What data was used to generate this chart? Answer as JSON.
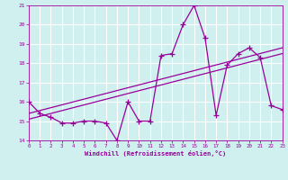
{
  "xlabel": "Windchill (Refroidissement éolien,°C)",
  "bg_color": "#cff0ef",
  "line_color": "#990099",
  "grid_color": "#ffffff",
  "xlim": [
    0,
    23
  ],
  "ylim": [
    14,
    21
  ],
  "yticks": [
    14,
    15,
    16,
    17,
    18,
    19,
    20,
    21
  ],
  "xticks": [
    0,
    1,
    2,
    3,
    4,
    5,
    6,
    7,
    8,
    9,
    10,
    11,
    12,
    13,
    14,
    15,
    16,
    17,
    18,
    19,
    20,
    21,
    22,
    23
  ],
  "series1_x": [
    0,
    1,
    2,
    3,
    4,
    5,
    6,
    7,
    8,
    9,
    10,
    11,
    12,
    13,
    14,
    15,
    16,
    17,
    18,
    19,
    20,
    21,
    22,
    23
  ],
  "series1_y": [
    16.0,
    15.4,
    15.2,
    14.9,
    14.9,
    15.0,
    15.0,
    14.9,
    14.0,
    16.0,
    15.0,
    15.0,
    18.4,
    18.5,
    20.0,
    21.0,
    19.3,
    15.3,
    17.9,
    18.5,
    18.8,
    18.3,
    15.8,
    15.6
  ],
  "trend1_x": [
    0,
    23
  ],
  "trend1_y": [
    15.1,
    18.5
  ],
  "trend2_x": [
    0,
    23
  ],
  "trend2_y": [
    15.4,
    18.8
  ]
}
